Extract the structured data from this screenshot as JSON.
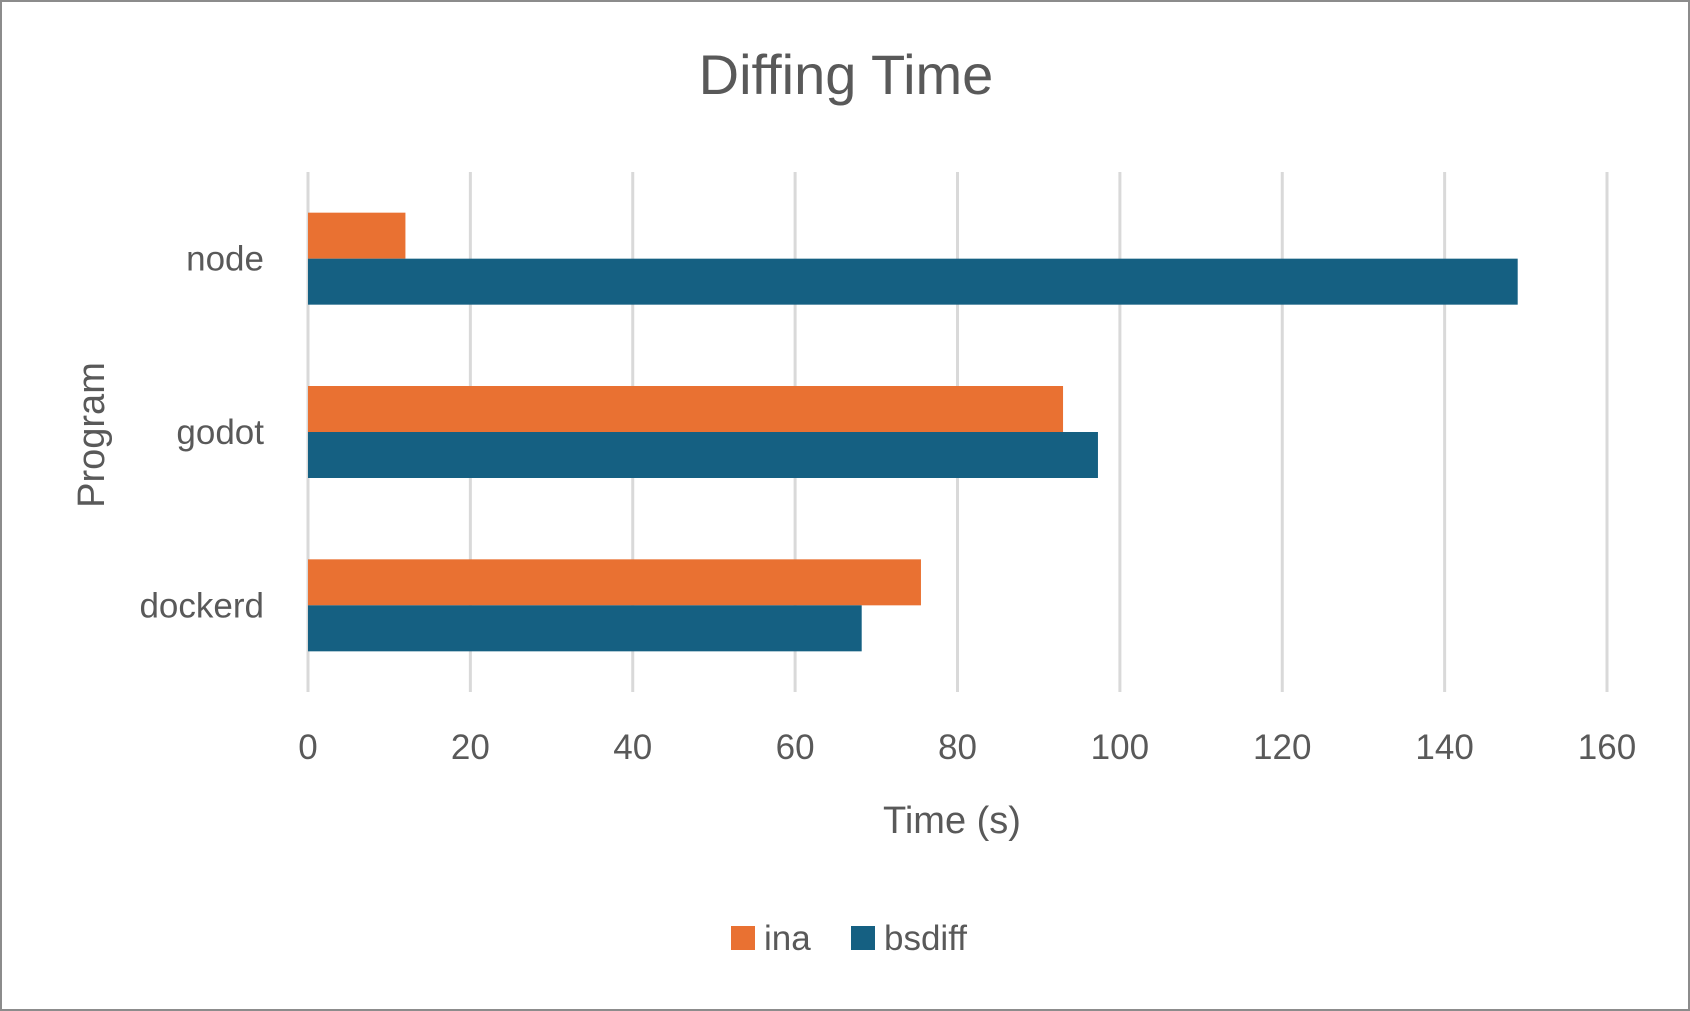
{
  "chart_data": {
    "type": "bar",
    "orientation": "horizontal",
    "title": "Diffing Time",
    "xlabel": "Time (s)",
    "ylabel": "Program",
    "categories": [
      "node",
      "godot",
      "dockerd"
    ],
    "series": [
      {
        "name": "ina",
        "color": "#E97132",
        "values": [
          12,
          93,
          75.5
        ]
      },
      {
        "name": "bsdiff",
        "color": "#156082",
        "values": [
          149,
          97.3,
          68.2
        ]
      }
    ],
    "xlim": [
      0,
      160
    ],
    "xticks": [
      0,
      20,
      40,
      60,
      80,
      100,
      120,
      140,
      160
    ],
    "grid": "vertical",
    "legend_position": "bottom"
  }
}
